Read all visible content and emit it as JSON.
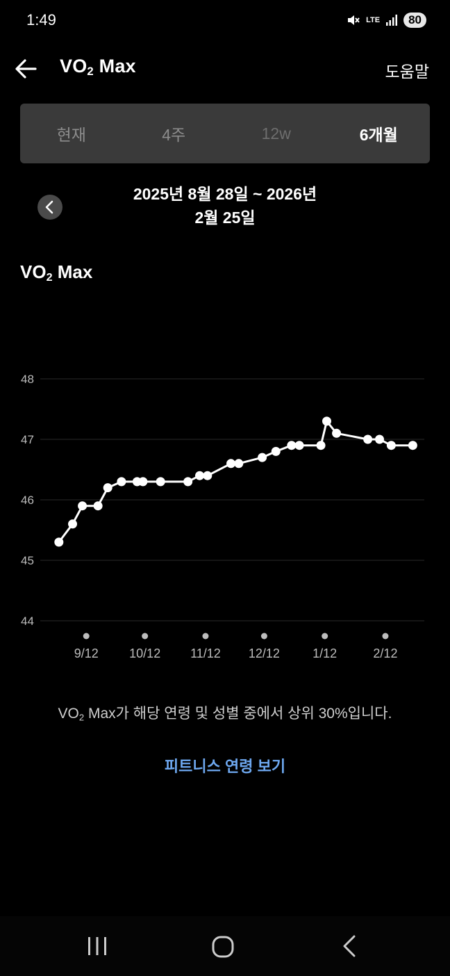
{
  "status_bar": {
    "time": "1:49",
    "network": "LTE",
    "battery": "80"
  },
  "header": {
    "title_main": "VO",
    "title_sub": "2",
    "title_rest": " Max",
    "help": "도움말"
  },
  "tabs": [
    {
      "label": "현재",
      "selected": false
    },
    {
      "label": "4주",
      "selected": false
    },
    {
      "label": "12w",
      "selected": false
    },
    {
      "label": "6개월",
      "selected": true
    }
  ],
  "date_range": {
    "line1": "2025년 8월 28일 ~ 2026년",
    "line2": "2월 25일"
  },
  "chart_section": {
    "title_main": "VO",
    "title_sub": "2",
    "title_rest": " Max"
  },
  "chart_data": {
    "type": "line",
    "ylim": [
      44,
      48
    ],
    "yticks": [
      "48",
      "47",
      "46",
      "45",
      "44"
    ],
    "grid": true,
    "x_tick_labels": [
      "9/12",
      "10/12",
      "11/12",
      "12/12",
      "1/12",
      "2/12"
    ],
    "x": [
      "2025-08-29",
      "2025-09-05",
      "2025-09-10",
      "2025-09-18",
      "2025-09-23",
      "2025-09-30",
      "2025-10-08",
      "2025-10-11",
      "2025-10-20",
      "2025-11-03",
      "2025-11-09",
      "2025-11-13",
      "2025-11-25",
      "2025-11-29",
      "2025-12-11",
      "2025-12-18",
      "2025-12-26",
      "2025-12-30",
      "2026-01-10",
      "2026-01-13",
      "2026-01-18",
      "2026-02-03",
      "2026-02-09",
      "2026-02-15",
      "2026-02-26"
    ],
    "values": [
      45.3,
      45.6,
      45.9,
      45.9,
      46.2,
      46.3,
      46.3,
      46.3,
      46.3,
      46.3,
      46.4,
      46.4,
      46.6,
      46.6,
      46.7,
      46.8,
      46.9,
      46.9,
      46.9,
      47.3,
      47.1,
      47.0,
      47.0,
      46.9,
      46.9
    ]
  },
  "summary": {
    "part1": "VO",
    "sub": "2",
    "part2": " Max가 해당 연령 및 성별 중에서 상위 30%입니다."
  },
  "link": "피트니스 연령 보기",
  "colors": {
    "background": "#000000",
    "tab_bg": "#3a3a3a",
    "link": "#6ea8f0",
    "grid": "#2a2a2a",
    "line": "#ffffff"
  }
}
